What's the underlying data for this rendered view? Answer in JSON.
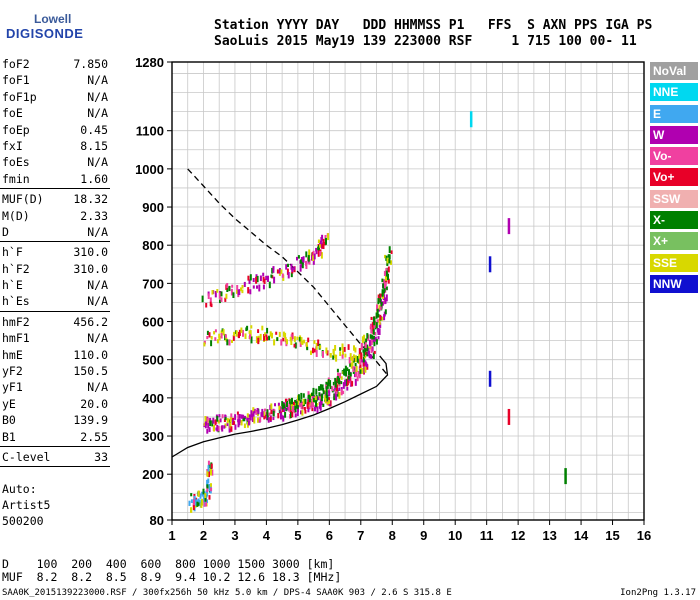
{
  "logo": {
    "line1": "Lowell",
    "line2": "DIGISONDE"
  },
  "header": {
    "line1": "Station YYYY DAY   DDD HHMMSS P1   FFS  S AXN PPS IGA PS",
    "line2": "SaoLuis 2015 May19 139 223000 RSF     1 715 100 00- 11"
  },
  "params": [
    {
      "k": "foF2",
      "v": "7.850"
    },
    {
      "k": "foF1",
      "v": "N/A"
    },
    {
      "k": "foF1p",
      "v": "N/A"
    },
    {
      "k": "foE",
      "v": "N/A"
    },
    {
      "k": "foEp",
      "v": "0.45"
    },
    {
      "k": "fxI",
      "v": "8.15"
    },
    {
      "k": "foEs",
      "v": "N/A"
    },
    {
      "k": "fmin",
      "v": "1.60"
    },
    {
      "sep": true
    },
    {
      "k": "MUF(D)",
      "v": "18.32"
    },
    {
      "k": "M(D)",
      "v": "2.33"
    },
    {
      "k": "D",
      "v": "N/A"
    },
    {
      "sep": true
    },
    {
      "k": "h`F",
      "v": "310.0"
    },
    {
      "k": "h`F2",
      "v": "310.0"
    },
    {
      "k": "h`E",
      "v": "N/A"
    },
    {
      "k": "h`Es",
      "v": "N/A"
    },
    {
      "sep": true
    },
    {
      "k": "hmF2",
      "v": "456.2"
    },
    {
      "k": "hmF1",
      "v": "N/A"
    },
    {
      "k": "hmE",
      "v": "110.0"
    },
    {
      "k": "yF2",
      "v": "150.5"
    },
    {
      "k": "yF1",
      "v": "N/A"
    },
    {
      "k": "yE",
      "v": "20.0"
    },
    {
      "k": "B0",
      "v": "139.9"
    },
    {
      "k": "B1",
      "v": "2.55"
    },
    {
      "sep": true
    },
    {
      "k": "C-level",
      "v": "33"
    },
    {
      "sep": true
    }
  ],
  "auto": {
    "line1": "Auto:",
    "line2": "Artist5",
    "line3": "500200"
  },
  "legend": [
    {
      "label": "NoVal",
      "color": "#a0a0a0"
    },
    {
      "label": "NNE",
      "color": "#00d8f0"
    },
    {
      "label": "E",
      "color": "#40a8f0"
    },
    {
      "label": "W",
      "color": "#b000b0"
    },
    {
      "label": "Vo-",
      "color": "#f040a0"
    },
    {
      "label": "Vo+",
      "color": "#e80028"
    },
    {
      "label": "SSW",
      "color": "#f0b0b0"
    },
    {
      "label": "X-",
      "color": "#008000"
    },
    {
      "label": "X+",
      "color": "#78c060"
    },
    {
      "label": "SSE",
      "color": "#d8d800"
    },
    {
      "label": "NNW",
      "color": "#1010d0"
    }
  ],
  "muf_table": {
    "line1": "D    100  200  400  600  800 1000 1500 3000 [km]",
    "line2": "MUF  8.2  8.2  8.5  8.9  9.4 10.2 12.6 18.3 [MHz]"
  },
  "footer": {
    "text": "SAA0K_2015139223000.RSF / 300fx256h 50 kHz 5.0 km / DPS-4 SAA0K 903 / 2.6 S 315.8 E",
    "version": "Ion2Png 1.3.17"
  },
  "chart_data": {
    "type": "scatter",
    "x_ticks": [
      1,
      2,
      3,
      4,
      5,
      6,
      7,
      8,
      9,
      10,
      11,
      12,
      13,
      14,
      15,
      16
    ],
    "y_ticks": [
      80,
      200,
      300,
      400,
      500,
      600,
      700,
      800,
      900,
      1000,
      1100,
      1280
    ],
    "xlim": [
      1,
      16
    ],
    "ylim": [
      80,
      1280
    ],
    "grid": true,
    "dashed_profile": {
      "x": [
        1.5,
        2.0,
        2.5,
        3.0,
        3.5,
        4.0,
        4.5,
        5.0,
        5.5,
        6.0,
        6.5,
        7.0,
        7.5,
        7.85
      ],
      "y": [
        1000,
        955,
        910,
        870,
        835,
        800,
        770,
        730,
        690,
        640,
        590,
        540,
        495,
        460
      ]
    },
    "solid_profile": {
      "x": [
        1.0,
        1.5,
        2.0,
        2.5,
        3.0,
        3.5,
        4.0,
        4.5,
        5.0,
        5.5,
        6.0,
        6.5,
        7.0,
        7.5,
        7.85,
        7.8,
        7.6
      ],
      "y": [
        245,
        270,
        285,
        295,
        305,
        312,
        320,
        330,
        342,
        355,
        372,
        390,
        410,
        430,
        460,
        490,
        510
      ]
    },
    "traces": [
      {
        "name": "O-trace F2",
        "color_key": "W",
        "x": [
          2.0,
          2.5,
          3.0,
          3.5,
          4.0,
          4.5,
          5.0,
          5.5,
          6.0,
          6.5,
          7.0,
          7.3,
          7.6,
          7.8
        ],
        "y": [
          335,
          340,
          345,
          355,
          365,
          372,
          380,
          392,
          410,
          440,
          480,
          530,
          610,
          720
        ]
      },
      {
        "name": "X-trace F2",
        "color_key": "X-",
        "x": [
          4.5,
          5.0,
          5.5,
          6.0,
          6.5,
          7.0,
          7.4,
          7.7,
          7.9
        ],
        "y": [
          380,
          392,
          410,
          435,
          470,
          520,
          600,
          700,
          790
        ]
      },
      {
        "name": "Second hop",
        "color_key": "W",
        "x": [
          2.0,
          3.0,
          4.0,
          5.0,
          5.5,
          5.9
        ],
        "y": [
          660,
          690,
          720,
          755,
          785,
          825
        ]
      },
      {
        "name": "Diffuse echoes",
        "color_key": "SSE",
        "x": [
          2.0,
          3.0,
          4.0,
          5.0,
          6.0,
          7.0
        ],
        "y": [
          560,
          570,
          575,
          550,
          530,
          520
        ]
      },
      {
        "name": "Low echoes",
        "color_key": "E",
        "x": [
          1.6,
          1.9,
          2.1,
          2.2
        ],
        "y": [
          130,
          140,
          150,
          240
        ]
      }
    ],
    "isolated_marks": [
      {
        "x": 11.1,
        "y": 750,
        "color_key": "NNW"
      },
      {
        "x": 11.1,
        "y": 450,
        "color_key": "NNW"
      },
      {
        "x": 11.7,
        "y": 850,
        "color_key": "W"
      },
      {
        "x": 11.7,
        "y": 350,
        "color_key": "Vo+"
      },
      {
        "x": 13.5,
        "y": 195,
        "color_key": "X-"
      },
      {
        "x": 10.5,
        "y": 1130,
        "color_key": "NNE"
      }
    ]
  }
}
